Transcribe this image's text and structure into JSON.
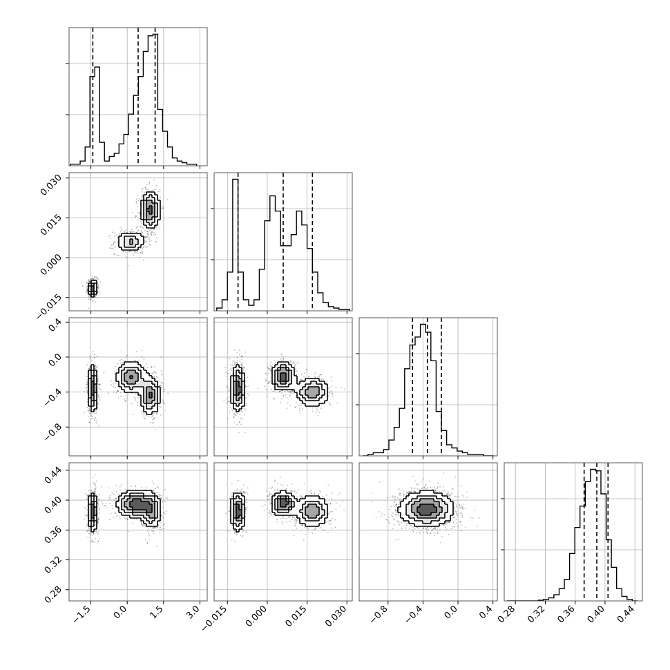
{
  "chart_data": [
    {
      "type": "histogram",
      "panel": "p1-hist",
      "xlim": [
        -2.4,
        3.3
      ],
      "bin_centers": [
        -2.24,
        -2.04,
        -1.84,
        -1.64,
        -1.44,
        -1.24,
        -1.04,
        -0.84,
        -0.64,
        -0.44,
        -0.24,
        -0.04,
        0.16,
        0.36,
        0.56,
        0.76,
        0.96,
        1.16,
        1.36,
        1.56,
        1.76,
        1.96,
        2.16,
        2.36,
        2.56,
        2.76
      ],
      "counts": [
        0.01,
        0.01,
        0.03,
        0.12,
        0.57,
        0.63,
        0.15,
        0.03,
        0.06,
        0.08,
        0.14,
        0.2,
        0.33,
        0.45,
        0.57,
        0.73,
        0.83,
        0.84,
        0.36,
        0.22,
        0.12,
        0.05,
        0.03,
        0.02,
        0.01,
        0.01
      ],
      "quantiles": [
        -1.42,
        0.45,
        1.15
      ]
    },
    {
      "type": "histogram",
      "panel": "p2-hist",
      "xlim": [
        -0.02,
        0.032
      ],
      "bin_centers": [
        -0.018,
        -0.016,
        -0.014,
        -0.012,
        -0.01,
        -0.008,
        -0.006,
        -0.004,
        -0.002,
        0.0,
        0.002,
        0.004,
        0.006,
        0.008,
        0.01,
        0.012,
        0.014,
        0.016,
        0.018,
        0.02,
        0.022,
        0.024,
        0.026,
        0.028,
        0.03
      ],
      "counts": [
        0.02,
        0.08,
        0.28,
        0.95,
        0.28,
        0.08,
        0.04,
        0.08,
        0.3,
        0.65,
        0.83,
        0.72,
        0.47,
        0.47,
        0.55,
        0.72,
        0.62,
        0.45,
        0.28,
        0.13,
        0.06,
        0.03,
        0.02,
        0.01,
        0.01
      ],
      "quantiles": [
        -0.011,
        0.006,
        0.017
      ]
    },
    {
      "type": "histogram",
      "panel": "p3-hist",
      "xlim": [
        -1.13,
        0.45
      ],
      "bin_centers": [
        -1.06,
        -1.0,
        -0.94,
        -0.88,
        -0.82,
        -0.76,
        -0.7,
        -0.64,
        -0.58,
        -0.52,
        -0.46,
        -0.4,
        -0.34,
        -0.28,
        -0.22,
        -0.16,
        -0.1,
        -0.04,
        0.02,
        0.08,
        0.14,
        0.2,
        0.26,
        0.32,
        0.38
      ],
      "counts": [
        0.0,
        0.01,
        0.02,
        0.02,
        0.04,
        0.1,
        0.18,
        0.3,
        0.55,
        0.7,
        0.75,
        0.83,
        0.78,
        0.6,
        0.28,
        0.16,
        0.07,
        0.05,
        0.03,
        0.02,
        0.01,
        0.01,
        0.01,
        0.0,
        0.0
      ],
      "quantiles": [
        -0.52,
        -0.35,
        -0.19
      ]
    },
    {
      "type": "histogram",
      "panel": "p4-hist",
      "xlim": [
        0.265,
        0.45
      ],
      "bin_centers": [
        0.272,
        0.279,
        0.286,
        0.293,
        0.3,
        0.307,
        0.314,
        0.321,
        0.328,
        0.335,
        0.342,
        0.349,
        0.356,
        0.363,
        0.37,
        0.377,
        0.384,
        0.391,
        0.398,
        0.405,
        0.412,
        0.419,
        0.426,
        0.433,
        0.44
      ],
      "counts": [
        0.0,
        0.0,
        0.0,
        0.0,
        0.0,
        0.0,
        0.005,
        0.01,
        0.02,
        0.04,
        0.08,
        0.14,
        0.31,
        0.48,
        0.62,
        0.78,
        0.86,
        0.85,
        0.7,
        0.4,
        0.22,
        0.08,
        0.03,
        0.01,
        0.0
      ],
      "quantiles": [
        0.372,
        0.389,
        0.404
      ]
    },
    {
      "type": "scatter-density",
      "panel": "p1-p2",
      "xlim": [
        -2.4,
        3.3
      ],
      "ylim": [
        -0.02,
        0.032
      ],
      "modes": [
        {
          "x": -1.42,
          "y": -0.0115,
          "sx": 0.1,
          "sy": 0.0017,
          "rot": 0,
          "w": 0.36
        },
        {
          "x": 0.15,
          "y": 0.006,
          "sx": 0.33,
          "sy": 0.0022,
          "rot": 0.05,
          "w": 0.22
        },
        {
          "x": 0.95,
          "y": 0.018,
          "sx": 0.22,
          "sy": 0.004,
          "rot": 0.15,
          "w": 0.32
        }
      ]
    },
    {
      "type": "scatter-density",
      "panel": "p1-p3",
      "xlim": [
        -2.4,
        3.3
      ],
      "ylim": [
        -1.13,
        0.45
      ],
      "modes": [
        {
          "x": -1.42,
          "y": -0.36,
          "sx": 0.11,
          "sy": 0.14,
          "rot": 0,
          "w": 0.36
        },
        {
          "x": 0.15,
          "y": -0.23,
          "sx": 0.33,
          "sy": 0.1,
          "rot": 0,
          "w": 0.3
        },
        {
          "x": 0.95,
          "y": -0.44,
          "sx": 0.23,
          "sy": 0.12,
          "rot": 0,
          "w": 0.3
        }
      ]
    },
    {
      "type": "scatter-density",
      "panel": "p1-p4",
      "xlim": [
        -2.4,
        3.3
      ],
      "ylim": [
        0.265,
        0.45
      ],
      "modes": [
        {
          "x": -1.42,
          "y": 0.385,
          "sx": 0.11,
          "sy": 0.014,
          "rot": 0,
          "w": 0.36
        },
        {
          "x": 0.35,
          "y": 0.395,
          "sx": 0.42,
          "sy": 0.01,
          "rot": 0,
          "w": 0.36
        },
        {
          "x": 1.0,
          "y": 0.385,
          "sx": 0.22,
          "sy": 0.013,
          "rot": 0,
          "w": 0.25
        }
      ]
    },
    {
      "type": "scatter-density",
      "panel": "p2-p3",
      "xlim": [
        -0.02,
        0.032
      ],
      "ylim": [
        -1.13,
        0.45
      ],
      "modes": [
        {
          "x": -0.011,
          "y": -0.36,
          "sx": 0.0015,
          "sy": 0.14,
          "rot": 0,
          "w": 0.36
        },
        {
          "x": 0.006,
          "y": -0.22,
          "sx": 0.0025,
          "sy": 0.09,
          "rot": 0,
          "w": 0.35
        },
        {
          "x": 0.017,
          "y": -0.4,
          "sx": 0.0035,
          "sy": 0.09,
          "rot": 0,
          "w": 0.29
        }
      ]
    },
    {
      "type": "scatter-density",
      "panel": "p2-p4",
      "xlim": [
        -0.02,
        0.032
      ],
      "ylim": [
        0.265,
        0.45
      ],
      "modes": [
        {
          "x": -0.011,
          "y": 0.385,
          "sx": 0.0015,
          "sy": 0.014,
          "rot": 0,
          "w": 0.36
        },
        {
          "x": 0.006,
          "y": 0.395,
          "sx": 0.0025,
          "sy": 0.009,
          "rot": 0,
          "w": 0.36
        },
        {
          "x": 0.017,
          "y": 0.385,
          "sx": 0.0035,
          "sy": 0.012,
          "rot": 0,
          "w": 0.28
        }
      ]
    },
    {
      "type": "scatter-density",
      "panel": "p3-p4",
      "xlim": [
        -1.13,
        0.45
      ],
      "ylim": [
        0.265,
        0.45
      ],
      "modes": [
        {
          "x": -0.36,
          "y": 0.388,
          "sx": 0.17,
          "sy": 0.013,
          "rot": 0.55,
          "w": 1.0
        }
      ]
    }
  ],
  "axes": {
    "p1": {
      "ticks": [
        -1.5,
        0.0,
        1.5,
        3.0
      ],
      "labels": [
        "−1.5",
        "0.0",
        "1.5",
        "3.0"
      ],
      "lim": [
        -2.4,
        3.3
      ]
    },
    "p2": {
      "ticks": [
        -0.015,
        0.0,
        0.015,
        0.03
      ],
      "labels": [
        "−0.015",
        "0.000",
        "0.015",
        "0.030"
      ],
      "lim": [
        -0.02,
        0.032
      ]
    },
    "p3": {
      "ticks": [
        -0.8,
        -0.4,
        0.0,
        0.4
      ],
      "labels": [
        "−0.8",
        "−0.4",
        "0.0",
        "0.4"
      ],
      "lim": [
        -1.13,
        0.45
      ]
    },
    "p4": {
      "ticks": [
        0.28,
        0.32,
        0.36,
        0.4,
        0.44
      ],
      "labels": [
        "0.28",
        "0.32",
        "0.36",
        "0.40",
        "0.44"
      ],
      "lim": [
        0.265,
        0.45
      ]
    }
  },
  "style": {
    "line": "#000000",
    "grid": "#b0b0b0",
    "point": "#000000",
    "fill_levels": [
      "#ffffff",
      "#e4e4e4",
      "#a6a6a6",
      "#5a5a5a",
      "#000000"
    ]
  }
}
